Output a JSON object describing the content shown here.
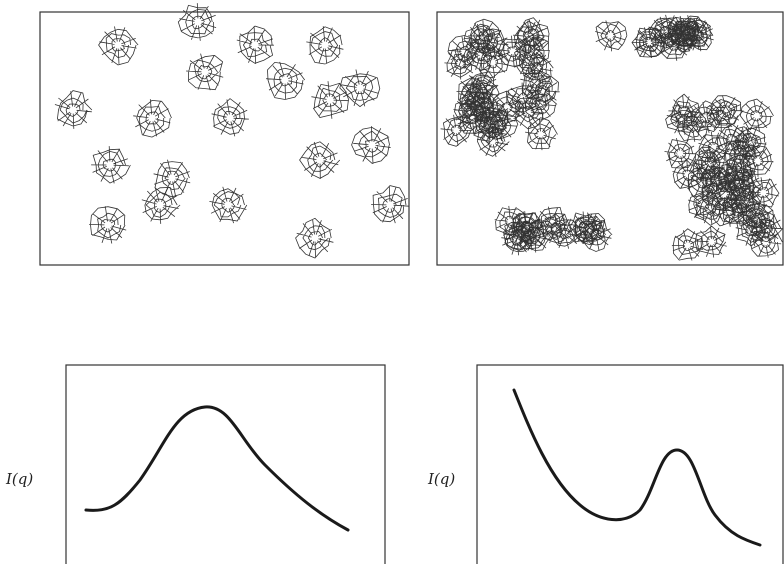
{
  "plots": [
    {
      "ylabel": "I(q)"
    },
    {
      "ylabel": "I(q)"
    }
  ]
}
